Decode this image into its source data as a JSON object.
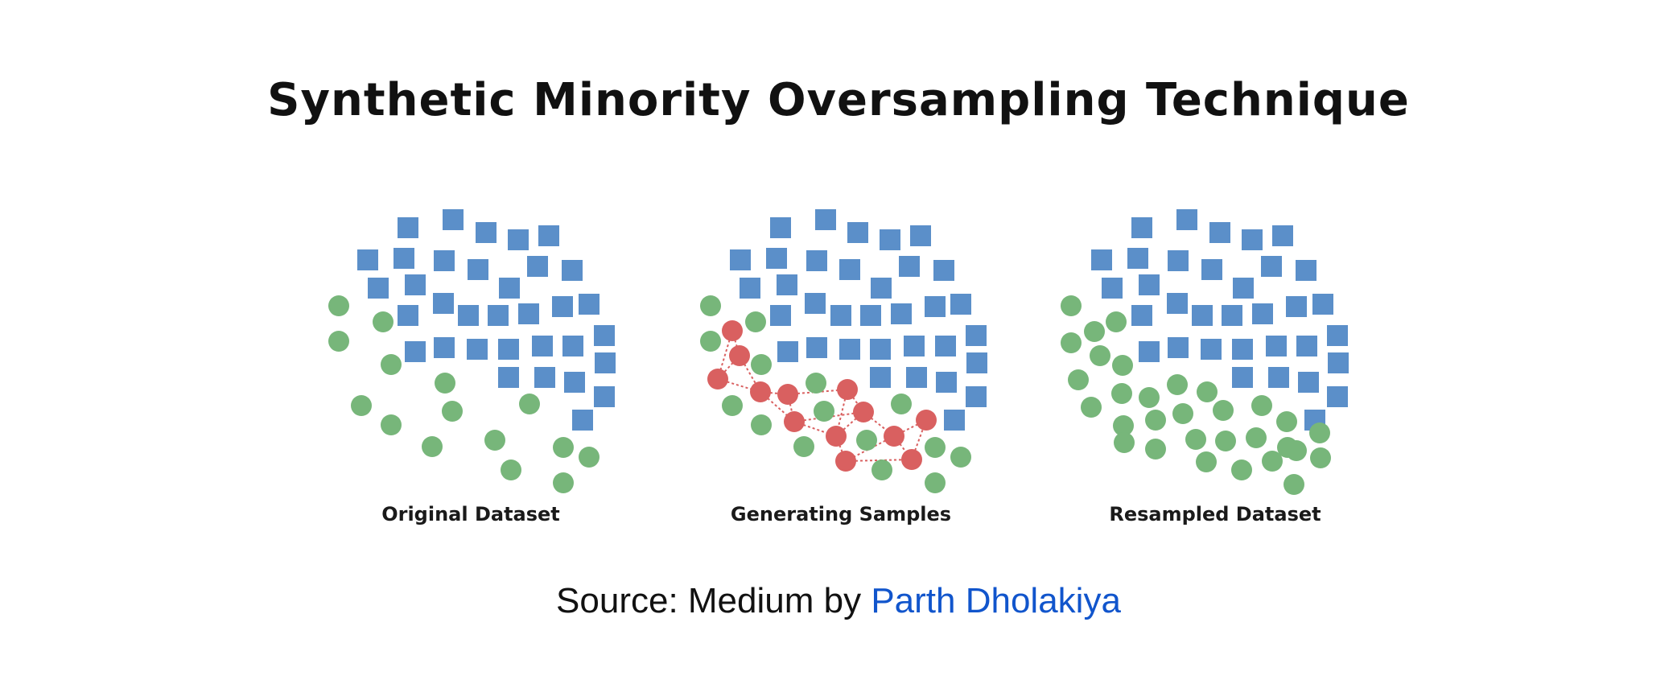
{
  "title": "Synthetic Minority Oversampling Technique",
  "panels": [
    {
      "caption": "Original Dataset",
      "squares": [
        [
          507,
          283
        ],
        [
          563,
          273
        ],
        [
          604,
          289
        ],
        [
          644,
          298
        ],
        [
          682,
          293
        ],
        [
          457,
          323
        ],
        [
          502,
          321
        ],
        [
          552,
          324
        ],
        [
          594,
          335
        ],
        [
          668,
          331
        ],
        [
          711,
          336
        ],
        [
          470,
          358
        ],
        [
          516,
          354
        ],
        [
          633,
          358
        ],
        [
          507,
          392
        ],
        [
          551,
          377
        ],
        [
          582,
          392
        ],
        [
          619,
          392
        ],
        [
          657,
          390
        ],
        [
          699,
          381
        ],
        [
          732,
          378
        ],
        [
          516,
          437
        ],
        [
          552,
          432
        ],
        [
          593,
          434
        ],
        [
          632,
          434
        ],
        [
          674,
          430
        ],
        [
          712,
          430
        ],
        [
          751,
          417
        ],
        [
          632,
          469
        ],
        [
          677,
          469
        ],
        [
          714,
          475
        ],
        [
          752,
          451
        ],
        [
          751,
          493
        ],
        [
          724,
          522
        ]
      ],
      "green": [
        [
          421,
          380
        ],
        [
          476,
          400
        ],
        [
          421,
          424
        ],
        [
          486,
          453
        ],
        [
          553,
          476
        ],
        [
          449,
          504
        ],
        [
          486,
          528
        ],
        [
          562,
          511
        ],
        [
          537,
          555
        ],
        [
          615,
          547
        ],
        [
          658,
          502
        ],
        [
          635,
          584
        ],
        [
          700,
          556
        ],
        [
          732,
          568
        ],
        [
          700,
          600
        ]
      ],
      "red": [],
      "edges": []
    },
    {
      "caption": "Generating Samples",
      "squares": [
        [
          970,
          283
        ],
        [
          1026,
          273
        ],
        [
          1066,
          289
        ],
        [
          1106,
          298
        ],
        [
          1144,
          293
        ],
        [
          920,
          323
        ],
        [
          965,
          321
        ],
        [
          1015,
          324
        ],
        [
          1056,
          335
        ],
        [
          1130,
          331
        ],
        [
          1173,
          336
        ],
        [
          932,
          358
        ],
        [
          978,
          354
        ],
        [
          1095,
          358
        ],
        [
          970,
          392
        ],
        [
          1013,
          377
        ],
        [
          1045,
          392
        ],
        [
          1082,
          392
        ],
        [
          1120,
          390
        ],
        [
          1162,
          381
        ],
        [
          1194,
          378
        ],
        [
          979,
          437
        ],
        [
          1015,
          432
        ],
        [
          1056,
          434
        ],
        [
          1094,
          434
        ],
        [
          1136,
          430
        ],
        [
          1175,
          430
        ],
        [
          1213,
          417
        ],
        [
          1094,
          469
        ],
        [
          1139,
          469
        ],
        [
          1176,
          475
        ],
        [
          1214,
          451
        ],
        [
          1213,
          493
        ],
        [
          1186,
          522
        ]
      ],
      "green": [
        [
          883,
          380
        ],
        [
          939,
          400
        ],
        [
          883,
          424
        ],
        [
          946,
          453
        ],
        [
          1014,
          476
        ],
        [
          910,
          504
        ],
        [
          946,
          528
        ],
        [
          1024,
          511
        ],
        [
          999,
          555
        ],
        [
          1077,
          547
        ],
        [
          1120,
          502
        ],
        [
          1096,
          584
        ],
        [
          1162,
          556
        ],
        [
          1194,
          568
        ],
        [
          1162,
          600
        ]
      ],
      "red": [
        [
          910,
          411
        ],
        [
          919,
          442
        ],
        [
          892,
          471
        ],
        [
          945,
          487
        ],
        [
          979,
          490
        ],
        [
          1053,
          484
        ],
        [
          987,
          524
        ],
        [
          1073,
          512
        ],
        [
          1039,
          542
        ],
        [
          1111,
          542
        ],
        [
          1051,
          573
        ],
        [
          1133,
          571
        ],
        [
          1151,
          522
        ]
      ],
      "edges": [
        [
          0,
          1
        ],
        [
          1,
          3
        ],
        [
          1,
          2
        ],
        [
          2,
          3
        ],
        [
          3,
          4
        ],
        [
          4,
          6
        ],
        [
          4,
          5
        ],
        [
          5,
          7
        ],
        [
          5,
          8
        ],
        [
          6,
          8
        ],
        [
          6,
          7
        ],
        [
          7,
          8
        ],
        [
          7,
          9
        ],
        [
          8,
          10
        ],
        [
          9,
          10
        ],
        [
          9,
          11
        ],
        [
          9,
          12
        ],
        [
          10,
          11
        ],
        [
          11,
          12
        ],
        [
          3,
          6
        ],
        [
          0,
          2
        ]
      ]
    },
    {
      "caption": "Resampled Dataset",
      "squares": [
        [
          1419,
          283
        ],
        [
          1475,
          273
        ],
        [
          1516,
          289
        ],
        [
          1556,
          298
        ],
        [
          1594,
          293
        ],
        [
          1369,
          323
        ],
        [
          1414,
          321
        ],
        [
          1464,
          324
        ],
        [
          1506,
          335
        ],
        [
          1580,
          331
        ],
        [
          1623,
          336
        ],
        [
          1382,
          358
        ],
        [
          1428,
          354
        ],
        [
          1545,
          358
        ],
        [
          1419,
          392
        ],
        [
          1463,
          377
        ],
        [
          1494,
          392
        ],
        [
          1531,
          392
        ],
        [
          1569,
          390
        ],
        [
          1611,
          381
        ],
        [
          1644,
          378
        ],
        [
          1428,
          437
        ],
        [
          1464,
          432
        ],
        [
          1505,
          434
        ],
        [
          1544,
          434
        ],
        [
          1586,
          430
        ],
        [
          1624,
          430
        ],
        [
          1662,
          417
        ],
        [
          1544,
          469
        ],
        [
          1589,
          469
        ],
        [
          1626,
          475
        ],
        [
          1663,
          451
        ],
        [
          1662,
          493
        ],
        [
          1634,
          522
        ]
      ],
      "green": [
        [
          1331,
          380
        ],
        [
          1360,
          412
        ],
        [
          1387,
          400
        ],
        [
          1331,
          426
        ],
        [
          1367,
          442
        ],
        [
          1395,
          454
        ],
        [
          1340,
          472
        ],
        [
          1394,
          489
        ],
        [
          1428,
          494
        ],
        [
          1463,
          478
        ],
        [
          1500,
          487
        ],
        [
          1356,
          506
        ],
        [
          1396,
          529
        ],
        [
          1436,
          522
        ],
        [
          1470,
          514
        ],
        [
          1520,
          510
        ],
        [
          1568,
          504
        ],
        [
          1397,
          550
        ],
        [
          1436,
          558
        ],
        [
          1486,
          546
        ],
        [
          1523,
          548
        ],
        [
          1561,
          544
        ],
        [
          1599,
          524
        ],
        [
          1600,
          556
        ],
        [
          1640,
          538
        ],
        [
          1641,
          569
        ],
        [
          1499,
          574
        ],
        [
          1543,
          584
        ],
        [
          1581,
          573
        ],
        [
          1611,
          560
        ],
        [
          1608,
          602
        ]
      ],
      "red": [],
      "edges": []
    }
  ],
  "source": {
    "prefix": "Source: Medium by ",
    "author": "Parth Dholakiya"
  },
  "colors": {
    "majority_square": "#5b8fc9",
    "minority_circle": "#77b67a",
    "synthetic_circle": "#d96060",
    "edge": "#d96060"
  }
}
